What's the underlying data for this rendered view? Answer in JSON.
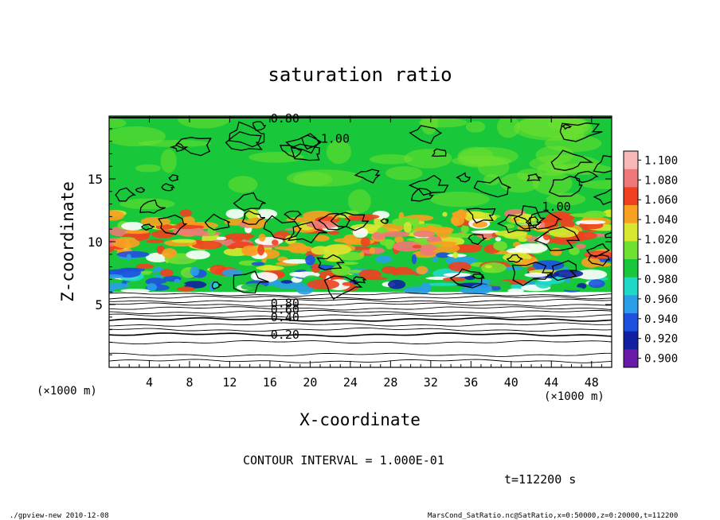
{
  "chart_data": {
    "type": "heatmap",
    "title": "saturation ratio",
    "xlabel": "X-coordinate",
    "ylabel": "Z-coordinate",
    "x_unit": "(×1000 m)",
    "y_unit": "(×1000 m)",
    "xlim": [
      0,
      50
    ],
    "ylim": [
      0,
      20
    ],
    "x_ticks": [
      4,
      8,
      12,
      16,
      20,
      24,
      28,
      32,
      36,
      40,
      44,
      48
    ],
    "y_ticks": [
      5,
      10,
      15
    ],
    "colorbar": {
      "levels": [
        0.9,
        0.92,
        0.94,
        0.96,
        0.98,
        1.0,
        1.02,
        1.04,
        1.06,
        1.08,
        1.1
      ],
      "labels": [
        "0.900",
        "0.920",
        "0.940",
        "0.960",
        "0.980",
        "1.000",
        "1.020",
        "1.040",
        "1.060",
        "1.080",
        "1.100"
      ],
      "colors": [
        "#6a1aa8",
        "#1020a0",
        "#1e50e0",
        "#2a9ee8",
        "#20d8c8",
        "#18c83a",
        "#70e030",
        "#d8e830",
        "#f8a020",
        "#f04020",
        "#f07878",
        "#f8b8b8"
      ]
    },
    "contour_labels": [
      {
        "text": "0.80",
        "x": 17.5,
        "y": 19.8
      },
      {
        "text": "1.00",
        "x": 22.5,
        "y": 18.2
      },
      {
        "text": "1.00",
        "x": 44.5,
        "y": 12.8
      },
      {
        "text": "0.80",
        "x": 17.5,
        "y": 5.1
      },
      {
        "text": "0.60",
        "x": 17.5,
        "y": 4.6
      },
      {
        "text": "0.40",
        "x": 17.5,
        "y": 4.0
      },
      {
        "text": "0.20",
        "x": 17.5,
        "y": 2.6
      }
    ],
    "contour_interval": "CONTOUR INTERVAL = 1.000E-01",
    "time_label": "t=112200 s"
  },
  "footer": {
    "left": "./gpview-new  2010-12-08",
    "right": "MarsCond_SatRatio.nc@SatRatio,x=0:50000,z=0:20000,t=112200"
  }
}
